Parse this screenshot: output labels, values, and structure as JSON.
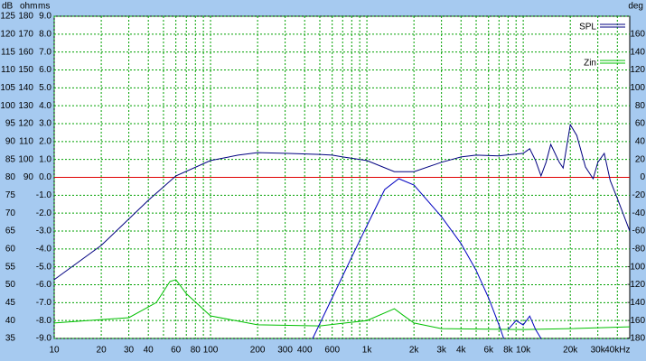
{
  "chart_data": {
    "type": "line",
    "y_labels": [
      "dB",
      "ohm",
      "ms"
    ],
    "y2_label": "deg",
    "xlim": [
      10,
      48000
    ],
    "xticks": [
      10,
      20,
      30,
      40,
      60,
      80,
      100,
      200,
      300,
      400,
      600,
      {
        "value": 1000,
        "label": "1k"
      },
      {
        "value": 2000,
        "label": "2k"
      },
      {
        "value": 3000,
        "label": "3k"
      },
      {
        "value": 4000,
        "label": "4k"
      },
      {
        "value": 6000,
        "label": "6k"
      },
      {
        "value": 8000,
        "label": "8k"
      },
      {
        "value": 10000,
        "label": "10k"
      },
      {
        "value": 20000,
        "label": "20k"
      },
      {
        "value": 30000,
        "label": "30k"
      },
      {
        "value": 40000,
        "label": "40kHz"
      }
    ],
    "xgrid": [
      10,
      20,
      30,
      40,
      50,
      60,
      70,
      80,
      90,
      100,
      200,
      300,
      400,
      500,
      600,
      700,
      800,
      900,
      1000,
      2000,
      3000,
      4000,
      5000,
      6000,
      7000,
      8000,
      9000,
      10000,
      20000,
      30000,
      40000
    ],
    "log_x": true,
    "ylim": [
      35,
      125
    ],
    "yticks": [
      125,
      120,
      115,
      110,
      105,
      100,
      95,
      90,
      85,
      80,
      75,
      70,
      65,
      60,
      55,
      50,
      45,
      40,
      35
    ],
    "ohm_lim": [
      0,
      180
    ],
    "ohm_ticks": [
      180,
      170,
      160,
      150,
      140,
      130,
      120,
      110,
      100,
      90
    ],
    "ms_lim": [
      -9,
      9
    ],
    "ms_ticks": [
      {
        "value": 9,
        "label": "9.0"
      },
      {
        "value": 8,
        "label": "8.0"
      },
      {
        "value": 7,
        "label": "7.0"
      },
      {
        "value": 6,
        "label": "6.0"
      },
      {
        "value": 5,
        "label": "5.0"
      },
      {
        "value": 4,
        "label": "4.0"
      },
      {
        "value": 3,
        "label": "3.0"
      },
      {
        "value": 2,
        "label": "2.0"
      },
      {
        "value": 1,
        "label": "1.0"
      },
      {
        "value": 0,
        "label": "0.0"
      },
      {
        "value": -1,
        "label": "-1.0"
      },
      {
        "value": -2,
        "label": "-2.0"
      },
      {
        "value": -3,
        "label": "-3.0"
      },
      {
        "value": -4,
        "label": "-4.0"
      },
      {
        "value": -5,
        "label": "-5.0"
      },
      {
        "value": -6,
        "label": "-6.0"
      },
      {
        "value": -7,
        "label": "-7.0"
      },
      {
        "value": -8,
        "label": "-8.0"
      },
      {
        "value": -9,
        "label": "-9.0"
      }
    ],
    "y2lim": [
      -180,
      180
    ],
    "y2ticks": [
      160,
      140,
      120,
      100,
      80,
      60,
      40,
      20,
      0,
      -20,
      -40,
      -60,
      -80,
      -100,
      -120,
      -140,
      -160,
      -180
    ],
    "grid": true,
    "grid_color": "#00a000",
    "reference_line": 80,
    "reference_color": "#e00000",
    "legend": "top-right",
    "series": [
      {
        "name": "SPL",
        "color": "#000080",
        "axis": "y",
        "x": [
          10,
          20,
          40,
          60,
          100,
          150,
          200,
          300,
          500,
          600,
          700,
          1000,
          1500,
          2000,
          3000,
          4000,
          5000,
          7000,
          10000,
          11000,
          12000,
          13000,
          14000,
          15000,
          17000,
          18000,
          20000,
          22000,
          25000,
          28000,
          30000,
          33000,
          36000,
          40000,
          48000
        ],
        "values": [
          51.4,
          61,
          73.6,
          80.4,
          84.7,
          86.2,
          86.9,
          86.7,
          86.4,
          86.2,
          85.7,
          84.7,
          81.6,
          81.6,
          84.2,
          85.7,
          86.2,
          86,
          86.7,
          88,
          84.7,
          80.4,
          84.2,
          89.2,
          84.2,
          82.6,
          94.7,
          91.7,
          82.9,
          79.6,
          84.2,
          86.7,
          79.1,
          74.1,
          65
        ]
      },
      {
        "name": "Zin",
        "color": "#00c000",
        "axis": "ohm",
        "x": [
          10,
          30,
          45,
          55,
          60,
          70,
          100,
          200,
          500,
          1000,
          1500,
          1700,
          2000,
          3000,
          10000,
          20000,
          48000
        ],
        "values": [
          8.6,
          11.6,
          20,
          31.8,
          32.8,
          25,
          12.6,
          7.6,
          7,
          10,
          16.6,
          13,
          8.6,
          5.5,
          5,
          5.5,
          6.5
        ]
      },
      {
        "color": "#0000c0",
        "axis": "y2",
        "x": [
          450,
          600,
          800,
          1000,
          1300,
          1600,
          2000,
          3000,
          4000,
          5000,
          6000,
          7000,
          7500,
          7800,
          8000,
          9000,
          10000,
          11000,
          12000,
          13000
        ],
        "values": [
          -180,
          -134.6,
          -89,
          -54,
          -13.6,
          -1.5,
          -8.6,
          -44,
          -74,
          -104,
          -134.6,
          -165,
          -180,
          null,
          -170,
          -160,
          -165,
          -155,
          -170,
          -180
        ]
      }
    ]
  }
}
